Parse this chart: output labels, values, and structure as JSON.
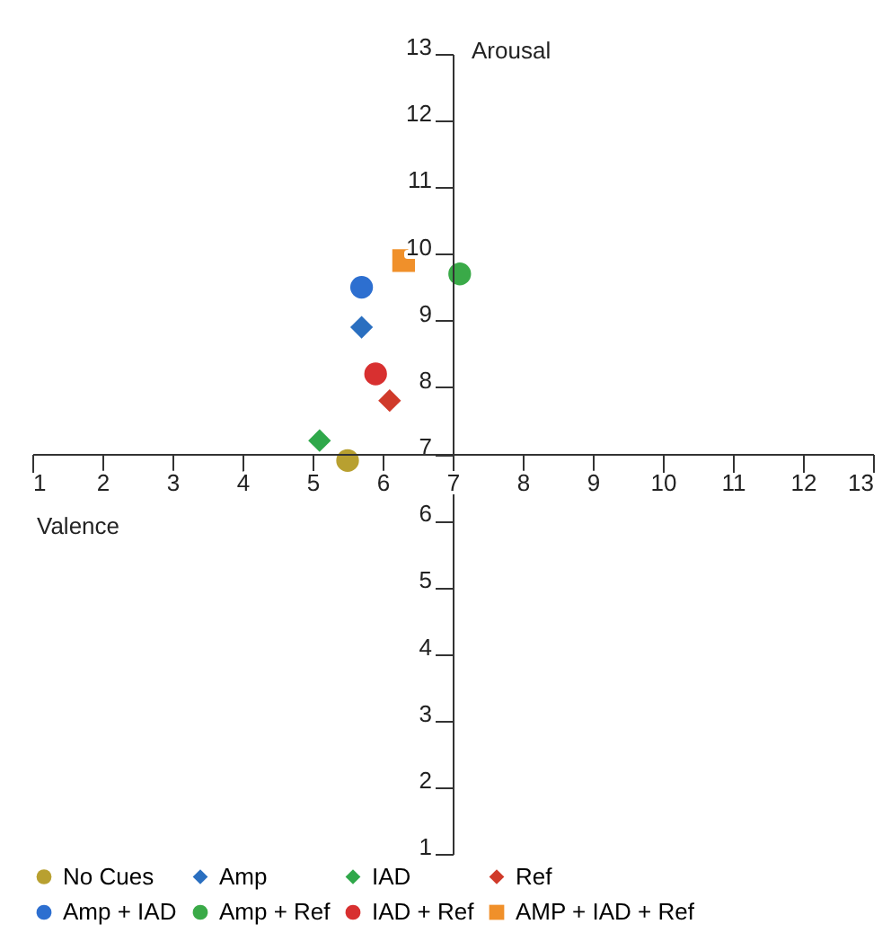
{
  "chart_data": {
    "type": "scatter",
    "xlabel": "Valence",
    "ylabel": "Arousal",
    "xlim": [
      1,
      13
    ],
    "ylim": [
      1,
      13
    ],
    "xticks": [
      1,
      2,
      3,
      4,
      5,
      6,
      7,
      8,
      9,
      10,
      11,
      12,
      13
    ],
    "yticks": [
      1,
      2,
      3,
      4,
      5,
      6,
      7,
      8,
      9,
      10,
      11,
      12,
      13
    ],
    "grid": false,
    "legend": "bottom",
    "series": [
      {
        "name": "No Cues",
        "color": "#b8a030",
        "marker": "circle",
        "x": [
          5.5
        ],
        "values": [
          6.9
        ]
      },
      {
        "name": "Amp",
        "color": "#2a6fc0",
        "marker": "diamond",
        "x": [
          5.7
        ],
        "values": [
          8.9
        ]
      },
      {
        "name": "IAD",
        "color": "#2fa84a",
        "marker": "diamond",
        "x": [
          5.1
        ],
        "values": [
          7.2
        ]
      },
      {
        "name": "Ref",
        "color": "#d03a2a",
        "marker": "diamond",
        "x": [
          6.1
        ],
        "values": [
          7.8
        ]
      },
      {
        "name": "Amp + IAD",
        "color": "#2d6fd0",
        "marker": "circle",
        "x": [
          5.7
        ],
        "values": [
          9.5
        ]
      },
      {
        "name": "Amp + Ref",
        "color": "#3aaa48",
        "marker": "circle",
        "x": [
          7.1
        ],
        "values": [
          9.7
        ]
      },
      {
        "name": "IAD + Ref",
        "color": "#d83030",
        "marker": "circle",
        "x": [
          5.9
        ],
        "values": [
          8.2
        ]
      },
      {
        "name": "AMP + IAD + Ref",
        "color": "#f0902a",
        "marker": "square",
        "x": [
          6.3
        ],
        "values": [
          9.9
        ]
      }
    ]
  }
}
